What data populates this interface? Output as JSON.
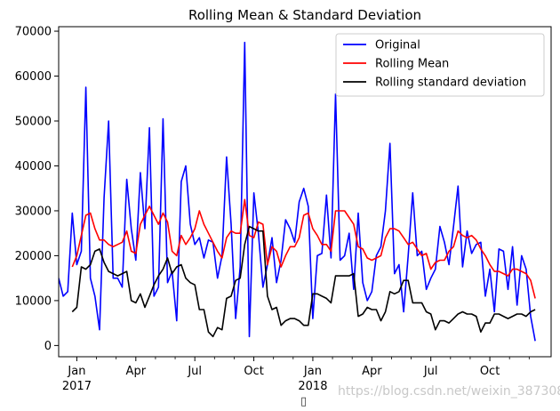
{
  "chart_data": {
    "type": "line",
    "title": "Rolling Mean & Standard Deviation",
    "xlabel": "",
    "ylabel": "",
    "ylim": [
      -2500,
      71000
    ],
    "yticks": [
      0,
      10000,
      20000,
      30000,
      40000,
      50000,
      60000,
      70000
    ],
    "xlim": [
      0,
      108.5
    ],
    "xticks": [
      {
        "x": 4,
        "label": "Jan",
        "sublabel": "2017"
      },
      {
        "x": 17,
        "label": "Apr",
        "sublabel": ""
      },
      {
        "x": 30,
        "label": "Jul",
        "sublabel": ""
      },
      {
        "x": 43,
        "label": "Oct",
        "sublabel": ""
      },
      {
        "x": 56,
        "label": "Jan",
        "sublabel": "2018"
      },
      {
        "x": 69,
        "label": "Apr",
        "sublabel": ""
      },
      {
        "x": 82,
        "label": "Jul",
        "sublabel": ""
      },
      {
        "x": 95,
        "label": "Oct",
        "sublabel": ""
      }
    ],
    "legend_position": "top-right",
    "series": [
      {
        "name": "Original",
        "color": "#0000ff",
        "points": [
          [
            0,
            15000
          ],
          [
            1,
            11000
          ],
          [
            2,
            12000
          ],
          [
            3,
            29500
          ],
          [
            4,
            18000
          ],
          [
            5,
            21000
          ],
          [
            6,
            57500
          ],
          [
            7,
            15000
          ],
          [
            8,
            11000
          ],
          [
            9,
            3500
          ],
          [
            10,
            33000
          ],
          [
            11,
            50000
          ],
          [
            12,
            15000
          ],
          [
            13,
            15000
          ],
          [
            14,
            13000
          ],
          [
            15,
            37000
          ],
          [
            16,
            26000
          ],
          [
            17,
            19000
          ],
          [
            18,
            38500
          ],
          [
            19,
            26000
          ],
          [
            20,
            48500
          ],
          [
            21,
            11000
          ],
          [
            22,
            13000
          ],
          [
            23,
            50500
          ],
          [
            24,
            14000
          ],
          [
            25,
            16500
          ],
          [
            26,
            5500
          ],
          [
            27,
            36500
          ],
          [
            28,
            40000
          ],
          [
            29,
            27000
          ],
          [
            30,
            22500
          ],
          [
            31,
            24000
          ],
          [
            32,
            19500
          ],
          [
            33,
            23500
          ],
          [
            34,
            23000
          ],
          [
            35,
            15000
          ],
          [
            36,
            20000
          ],
          [
            37,
            42000
          ],
          [
            38,
            27000
          ],
          [
            39,
            6000
          ],
          [
            40,
            17500
          ],
          [
            41,
            67500
          ],
          [
            42,
            2000
          ],
          [
            43,
            34000
          ],
          [
            44,
            25000
          ],
          [
            45,
            13000
          ],
          [
            46,
            18000
          ],
          [
            47,
            24000
          ],
          [
            48,
            14000
          ],
          [
            49,
            19000
          ],
          [
            50,
            28000
          ],
          [
            51,
            26000
          ],
          [
            52,
            23000
          ],
          [
            53,
            32000
          ],
          [
            54,
            35000
          ],
          [
            55,
            31000
          ],
          [
            56,
            6000
          ],
          [
            57,
            20000
          ],
          [
            58,
            20500
          ],
          [
            59,
            33500
          ],
          [
            60,
            19500
          ],
          [
            61,
            56000
          ],
          [
            62,
            19000
          ],
          [
            63,
            20000
          ],
          [
            64,
            25000
          ],
          [
            65,
            12500
          ],
          [
            66,
            29500
          ],
          [
            67,
            14000
          ],
          [
            68,
            10000
          ],
          [
            69,
            12000
          ],
          [
            70,
            20000
          ],
          [
            71,
            22000
          ],
          [
            72,
            30000
          ],
          [
            73,
            45000
          ],
          [
            74,
            16000
          ],
          [
            75,
            18000
          ],
          [
            76,
            7500
          ],
          [
            77,
            20000
          ],
          [
            78,
            34000
          ],
          [
            79,
            20000
          ],
          [
            80,
            21000
          ],
          [
            81,
            12500
          ],
          [
            82,
            15000
          ],
          [
            83,
            17000
          ],
          [
            84,
            26500
          ],
          [
            85,
            23000
          ],
          [
            86,
            18000
          ],
          [
            87,
            26500
          ],
          [
            88,
            35500
          ],
          [
            89,
            17500
          ],
          [
            90,
            25500
          ],
          [
            91,
            20500
          ],
          [
            92,
            22500
          ],
          [
            93,
            23000
          ],
          [
            94,
            11000
          ],
          [
            95,
            17000
          ],
          [
            96,
            7500
          ],
          [
            97,
            21500
          ],
          [
            98,
            21000
          ],
          [
            99,
            12500
          ],
          [
            100,
            22000
          ],
          [
            101,
            9000
          ],
          [
            102,
            20000
          ],
          [
            103,
            17000
          ],
          [
            104,
            6500
          ],
          [
            105,
            1000
          ]
        ]
      },
      {
        "name": "Rolling Mean",
        "color": "#ff0000",
        "points": [
          [
            3,
            17500
          ],
          [
            4,
            20000
          ],
          [
            5,
            24500
          ],
          [
            6,
            29000
          ],
          [
            7,
            29500
          ],
          [
            8,
            26000
          ],
          [
            9,
            23500
          ],
          [
            10,
            23500
          ],
          [
            11,
            22500
          ],
          [
            12,
            22000
          ],
          [
            13,
            22500
          ],
          [
            14,
            23000
          ],
          [
            15,
            25500
          ],
          [
            16,
            21000
          ],
          [
            17,
            20500
          ],
          [
            18,
            27000
          ],
          [
            19,
            29000
          ],
          [
            20,
            31000
          ],
          [
            21,
            29000
          ],
          [
            22,
            27000
          ],
          [
            23,
            29500
          ],
          [
            24,
            27500
          ],
          [
            25,
            21000
          ],
          [
            26,
            20000
          ],
          [
            27,
            24500
          ],
          [
            28,
            22500
          ],
          [
            29,
            24000
          ],
          [
            30,
            26000
          ],
          [
            31,
            30000
          ],
          [
            32,
            27000
          ],
          [
            33,
            25000
          ],
          [
            34,
            23000
          ],
          [
            35,
            21000
          ],
          [
            36,
            19500
          ],
          [
            37,
            24000
          ],
          [
            38,
            25500
          ],
          [
            39,
            25000
          ],
          [
            40,
            25000
          ],
          [
            41,
            32500
          ],
          [
            42,
            24500
          ],
          [
            43,
            24000
          ],
          [
            44,
            27500
          ],
          [
            45,
            27000
          ],
          [
            46,
            18000
          ],
          [
            47,
            22000
          ],
          [
            48,
            21000
          ],
          [
            49,
            17500
          ],
          [
            50,
            20000
          ],
          [
            51,
            22000
          ],
          [
            52,
            22000
          ],
          [
            53,
            24000
          ],
          [
            54,
            29000
          ],
          [
            55,
            29500
          ],
          [
            56,
            26000
          ],
          [
            57,
            24500
          ],
          [
            58,
            22500
          ],
          [
            59,
            22500
          ],
          [
            60,
            21000
          ],
          [
            61,
            30000
          ],
          [
            62,
            30000
          ],
          [
            63,
            30000
          ],
          [
            64,
            28500
          ],
          [
            65,
            27000
          ],
          [
            66,
            22000
          ],
          [
            67,
            21500
          ],
          [
            68,
            19500
          ],
          [
            69,
            19000
          ],
          [
            70,
            19500
          ],
          [
            71,
            20000
          ],
          [
            72,
            24000
          ],
          [
            73,
            26000
          ],
          [
            74,
            26000
          ],
          [
            75,
            25500
          ],
          [
            76,
            24000
          ],
          [
            77,
            22500
          ],
          [
            78,
            23000
          ],
          [
            79,
            21500
          ],
          [
            80,
            20000
          ],
          [
            81,
            20500
          ],
          [
            82,
            17000
          ],
          [
            83,
            18500
          ],
          [
            84,
            19000
          ],
          [
            85,
            19000
          ],
          [
            86,
            21000
          ],
          [
            87,
            22000
          ],
          [
            88,
            25500
          ],
          [
            89,
            24500
          ],
          [
            90,
            24000
          ],
          [
            91,
            24500
          ],
          [
            92,
            23500
          ],
          [
            93,
            21500
          ],
          [
            94,
            20000
          ],
          [
            95,
            18000
          ],
          [
            96,
            16500
          ],
          [
            97,
            16500
          ],
          [
            98,
            16000
          ],
          [
            99,
            15500
          ],
          [
            100,
            17000
          ],
          [
            101,
            17000
          ],
          [
            102,
            16500
          ],
          [
            103,
            16000
          ],
          [
            104,
            14500
          ],
          [
            105,
            10500
          ]
        ]
      },
      {
        "name": "Rolling standard deviation",
        "color": "#000000",
        "points": [
          [
            3,
            7500
          ],
          [
            4,
            8500
          ],
          [
            5,
            17500
          ],
          [
            6,
            17000
          ],
          [
            7,
            18000
          ],
          [
            8,
            21000
          ],
          [
            9,
            21500
          ],
          [
            10,
            18500
          ],
          [
            11,
            16500
          ],
          [
            12,
            16000
          ],
          [
            13,
            15500
          ],
          [
            14,
            16000
          ],
          [
            15,
            16500
          ],
          [
            16,
            10000
          ],
          [
            17,
            9500
          ],
          [
            18,
            11500
          ],
          [
            19,
            8500
          ],
          [
            20,
            11000
          ],
          [
            21,
            13500
          ],
          [
            22,
            15500
          ],
          [
            23,
            17000
          ],
          [
            24,
            19500
          ],
          [
            25,
            16000
          ],
          [
            26,
            17500
          ],
          [
            27,
            18000
          ],
          [
            28,
            15000
          ],
          [
            29,
            14000
          ],
          [
            30,
            13500
          ],
          [
            31,
            8000
          ],
          [
            32,
            8000
          ],
          [
            33,
            3000
          ],
          [
            34,
            2000
          ],
          [
            35,
            4000
          ],
          [
            36,
            3500
          ],
          [
            37,
            10500
          ],
          [
            38,
            11000
          ],
          [
            39,
            14500
          ],
          [
            40,
            15000
          ],
          [
            41,
            22500
          ],
          [
            42,
            26500
          ],
          [
            43,
            26000
          ],
          [
            44,
            25500
          ],
          [
            45,
            25500
          ],
          [
            46,
            11000
          ],
          [
            47,
            8000
          ],
          [
            48,
            8500
          ],
          [
            49,
            4500
          ],
          [
            50,
            5500
          ],
          [
            51,
            6000
          ],
          [
            52,
            6000
          ],
          [
            53,
            5500
          ],
          [
            54,
            4500
          ],
          [
            55,
            4500
          ],
          [
            56,
            11500
          ],
          [
            57,
            11500
          ],
          [
            58,
            11000
          ],
          [
            59,
            10500
          ],
          [
            60,
            9500
          ],
          [
            61,
            15500
          ],
          [
            62,
            15500
          ],
          [
            63,
            15500
          ],
          [
            64,
            15500
          ],
          [
            65,
            16000
          ],
          [
            66,
            6500
          ],
          [
            67,
            7000
          ],
          [
            68,
            8500
          ],
          [
            69,
            8000
          ],
          [
            70,
            8000
          ],
          [
            71,
            5500
          ],
          [
            72,
            7500
          ],
          [
            73,
            12000
          ],
          [
            74,
            11500
          ],
          [
            75,
            12000
          ],
          [
            76,
            14500
          ],
          [
            77,
            14500
          ],
          [
            78,
            9500
          ],
          [
            79,
            9500
          ],
          [
            80,
            9500
          ],
          [
            81,
            7500
          ],
          [
            82,
            7000
          ],
          [
            83,
            3500
          ],
          [
            84,
            5500
          ],
          [
            85,
            5500
          ],
          [
            86,
            5000
          ],
          [
            87,
            6000
          ],
          [
            88,
            7000
          ],
          [
            89,
            7500
          ],
          [
            90,
            7000
          ],
          [
            91,
            7000
          ],
          [
            92,
            6500
          ],
          [
            93,
            3000
          ],
          [
            94,
            5000
          ],
          [
            95,
            5000
          ],
          [
            96,
            7000
          ],
          [
            97,
            7000
          ],
          [
            98,
            6500
          ],
          [
            99,
            6000
          ],
          [
            100,
            6500
          ],
          [
            101,
            7000
          ],
          [
            102,
            7000
          ],
          [
            103,
            6500
          ],
          [
            104,
            7500
          ],
          [
            105,
            8000
          ]
        ]
      }
    ]
  },
  "watermark": "https://blog.csdn.net/weixin_38730853",
  "footer_glyph": "▯"
}
